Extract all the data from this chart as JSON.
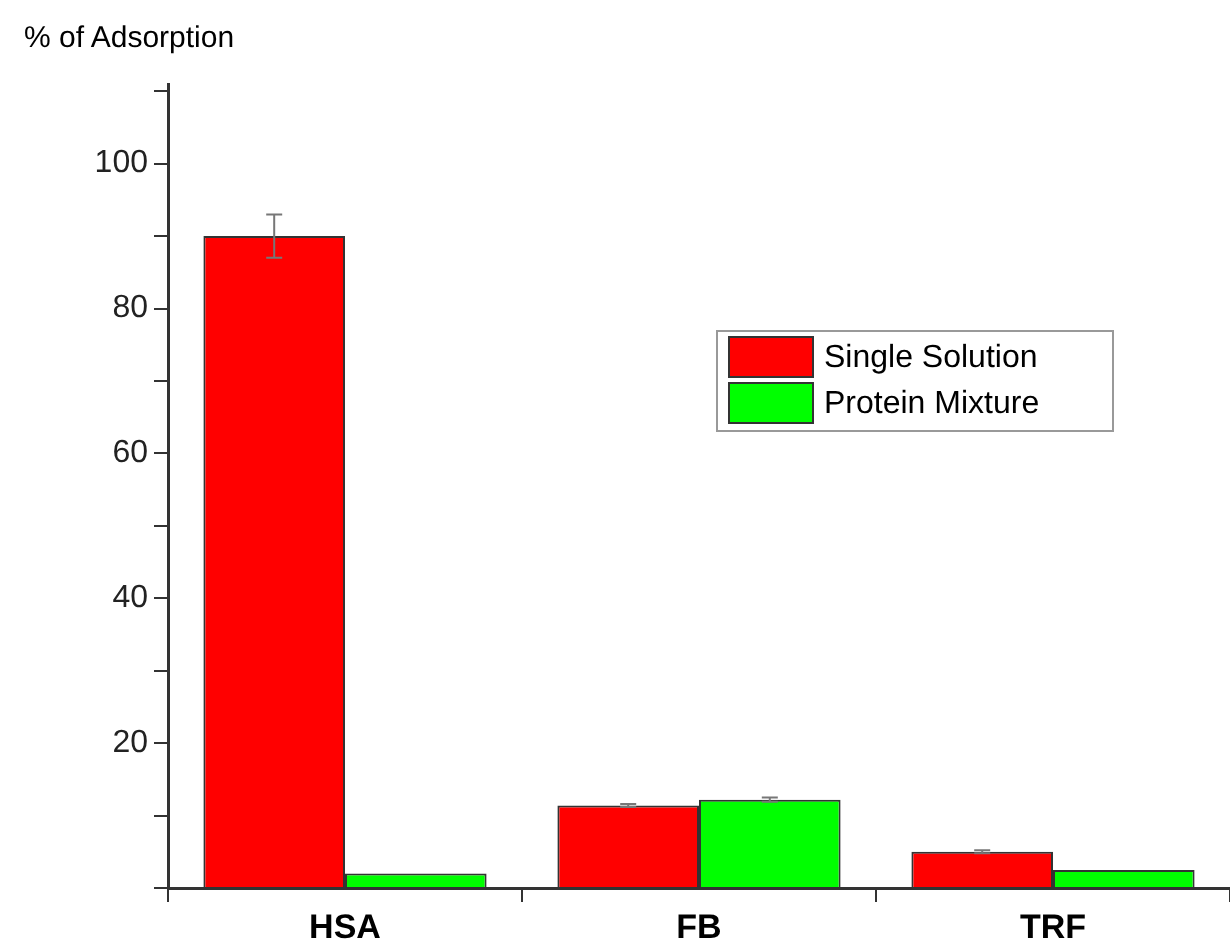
{
  "chart_data": {
    "type": "bar",
    "ylabel": "% of Adsorption",
    "categories": [
      "HSA",
      "FB",
      "TRF"
    ],
    "series": [
      {
        "name": "Single Solution",
        "color": "#ff0000",
        "values": [
          90,
          11.4,
          5
        ],
        "errors": [
          3,
          0.2,
          0.2
        ]
      },
      {
        "name": "Protein Mixture",
        "color": "#00ff00",
        "values": [
          2,
          12.2,
          2.5
        ],
        "errors": [
          null,
          0.3,
          null
        ]
      }
    ],
    "ylim": [
      0,
      111
    ],
    "yticks": [
      {
        "value": 0,
        "label": null
      },
      {
        "value": 10,
        "label": null
      },
      20,
      {
        "value": 30,
        "label": null
      },
      40,
      {
        "value": 50,
        "label": null
      },
      60,
      {
        "value": 70,
        "label": null
      },
      80,
      {
        "value": 90,
        "label": null
      },
      100,
      {
        "value": 110,
        "label": null
      }
    ],
    "grid": false,
    "legend": "right"
  }
}
